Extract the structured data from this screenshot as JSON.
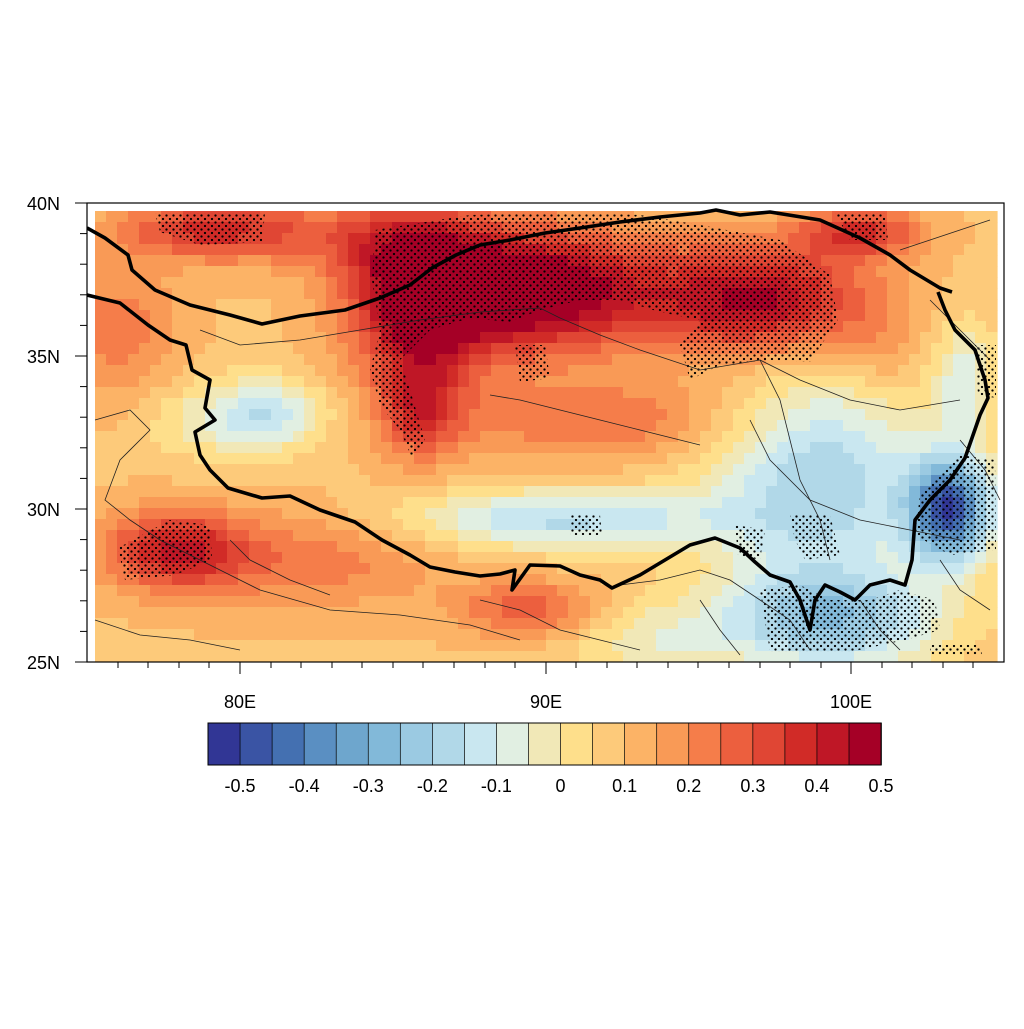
{
  "map": {
    "lat_ticks": [
      "40N",
      "35N",
      "30N",
      "25N"
    ],
    "lon_ticks": [
      "80E",
      "90E",
      "100E"
    ],
    "lon_range": [
      75,
      105
    ],
    "lat_range": [
      25,
      40
    ]
  },
  "colorbar": {
    "labels": [
      "-0.5",
      "-0.4",
      "-0.3",
      "-0.2",
      "-0.1",
      "0",
      "0.1",
      "0.2",
      "0.3",
      "0.4",
      "0.5"
    ],
    "colors": [
      "#313695",
      "#3a54a4",
      "#4470b1",
      "#5a8fc2",
      "#6ea6cd",
      "#82b9d9",
      "#9bcae2",
      "#b1d8e8",
      "#c9e7f0",
      "#e1efe2",
      "#f1e8b7",
      "#fedf8b",
      "#fdca7a",
      "#fcb366",
      "#f99a56",
      "#f57d4a",
      "#ec5f3e",
      "#e04634",
      "#d12b27",
      "#bf1726",
      "#a50026"
    ],
    "palette": [
      "#4470b1",
      "#6ea6cd",
      "#9bcae2",
      "#c9e7f0",
      "#e6eed4",
      "#fbe1a0",
      "#fcc178",
      "#f99a56",
      "#f26b43",
      "#d83a2e"
    ]
  }
}
